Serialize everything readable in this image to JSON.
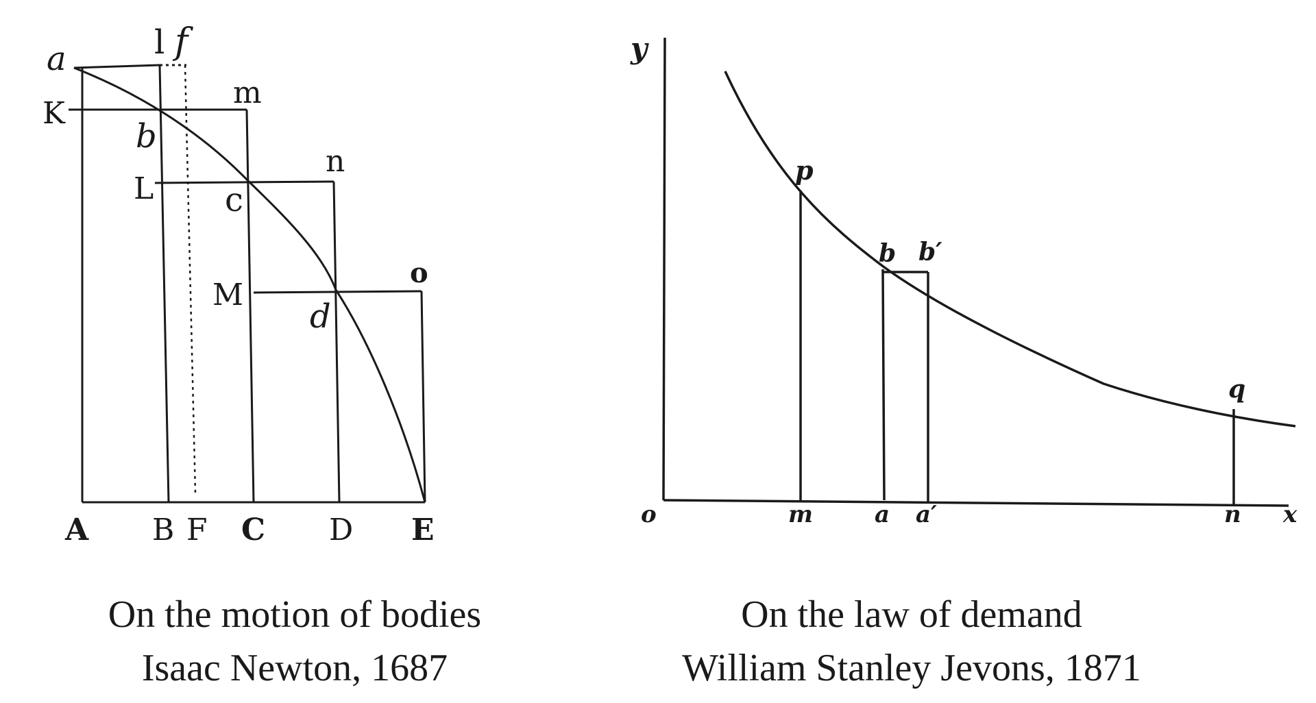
{
  "newton": {
    "labels": {
      "a": "a",
      "l": "l",
      "f": "f",
      "m": "m",
      "K": "K",
      "b": "b",
      "n": "n",
      "L": "L",
      "c": "c",
      "o": "o",
      "M": "M",
      "d": "d",
      "A": "A",
      "B": "B",
      "F": "F",
      "C": "C",
      "D": "D",
      "E": "E"
    },
    "caption_title": "On the motion of bodies",
    "caption_author": "Isaac Newton, 1687"
  },
  "jevons": {
    "labels": {
      "y": "y",
      "p": "p",
      "b": "b",
      "b_prime": "b′",
      "q": "q",
      "o": "o",
      "m": "m",
      "a": "a",
      "a_prime": "a′",
      "n": "n",
      "x": "x"
    },
    "caption_title": "On the law of demand",
    "caption_author": "William Stanley Jevons, 1871"
  },
  "colors": {
    "ink": "#1a1a1a",
    "background": "#ffffff"
  }
}
